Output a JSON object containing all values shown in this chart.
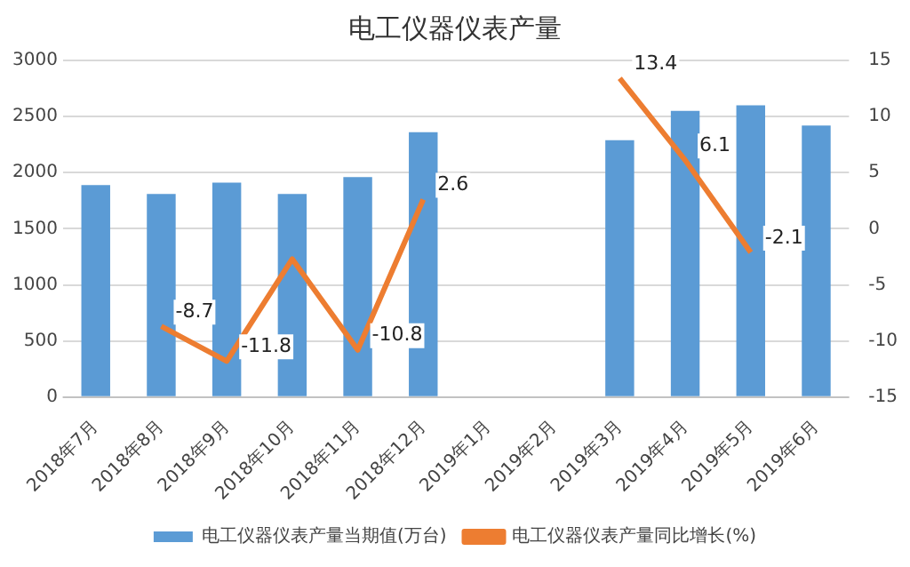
{
  "chart_data": {
    "type": "bar",
    "title": "电工仪器仪表产量",
    "categories": [
      "2018年7月",
      "2018年8月",
      "2018年9月",
      "2018年10月",
      "2018年11月",
      "2018年12月",
      "2019年1月",
      "2019年2月",
      "2019年3月",
      "2019年4月",
      "2019年5月",
      "2019年6月"
    ],
    "series": [
      {
        "name": "电工仪器仪表产量当期值(万台)",
        "color": "#5b9bd5",
        "values": [
          1890,
          1810,
          1910,
          1810,
          1960,
          2360,
          null,
          null,
          2290,
          2550,
          2600,
          2420
        ]
      },
      {
        "name": "电工仪器仪表产量同比增长(%)",
        "type": "line",
        "axis": "y2",
        "color": "#ed7d31",
        "values": [
          null,
          -8.7,
          -11.8,
          -2.7,
          -10.8,
          2.6,
          null,
          null,
          13.4,
          6.1,
          -2.1,
          null
        ],
        "value_labels": [
          null,
          "-8.7",
          "-11.8",
          null,
          "-10.8",
          "2.6",
          null,
          null,
          "13.4",
          "6.1",
          "-2.1",
          null
        ]
      }
    ],
    "ylim": [
      0,
      3000
    ],
    "yticks": [
      0,
      500,
      1000,
      1500,
      2000,
      2500,
      3000
    ],
    "y2lim": [
      -15,
      15
    ],
    "y2ticks": [
      -15,
      -10,
      -5,
      0,
      5,
      10,
      15
    ],
    "grid": "y",
    "legend": "bottom",
    "marker": "none"
  }
}
